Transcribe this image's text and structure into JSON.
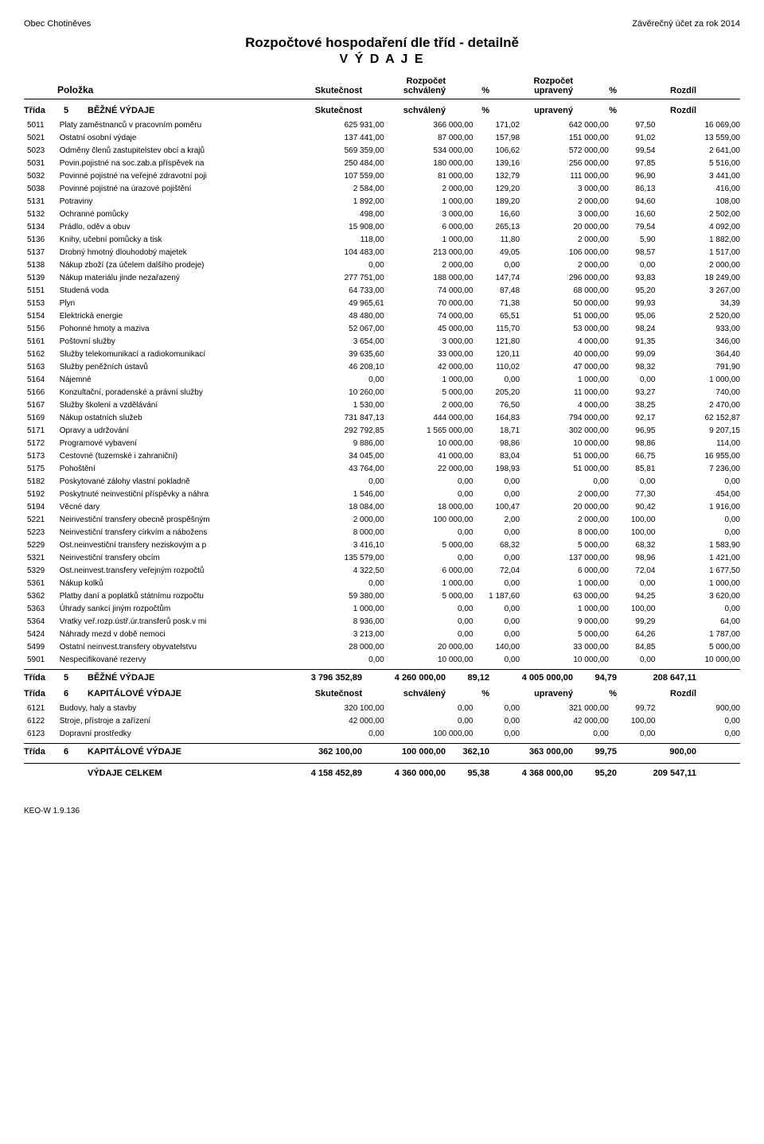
{
  "header": {
    "org_left": "Obec Chotiněves",
    "org_right": "Závěrečný účet za rok 2014",
    "title": "Rozpočtové hospodaření dle tříd - detailně",
    "subtitle": "V Ý D A J E"
  },
  "columns": {
    "polozka": "Položka",
    "skutecnost": "Skutečnost",
    "rozpocet_schvaleny_1": "Rozpočet",
    "rozpocet_schvaleny_2": "schválený",
    "pct": "%",
    "rozpocet_upraveny_1": "Rozpočet",
    "rozpocet_upraveny_2": "upravený",
    "rozdil": "Rozdíl"
  },
  "class_header_labels": {
    "trida": "Třída",
    "skutecnost": "Skutečnost",
    "schvaleny": "schválený",
    "pct": "%",
    "upraveny": "upravený",
    "rozdil": "Rozdíl"
  },
  "sections": [
    {
      "num": "5",
      "name": "BĚŽNÉ VÝDAJE",
      "rows": [
        [
          "5011",
          "Platy zaměstnanců v pracovním poměru",
          "625 931,00",
          "366 000,00",
          "171,02",
          "642 000,00",
          "97,50",
          "16 069,00"
        ],
        [
          "5021",
          "Ostatní osobní výdaje",
          "137 441,00",
          "87 000,00",
          "157,98",
          "151 000,00",
          "91,02",
          "13 559,00"
        ],
        [
          "5023",
          "Odměny členů zastupitelstev obcí a krajů",
          "569 359,00",
          "534 000,00",
          "106,62",
          "572 000,00",
          "99,54",
          "2 641,00"
        ],
        [
          "5031",
          "Povin.pojistné na soc.zab.a příspěvek na",
          "250 484,00",
          "180 000,00",
          "139,16",
          "256 000,00",
          "97,85",
          "5 516,00"
        ],
        [
          "5032",
          "Povinné pojistné na veřejné zdravotní poji",
          "107 559,00",
          "81 000,00",
          "132,79",
          "111 000,00",
          "96,90",
          "3 441,00"
        ],
        [
          "5038",
          "Povinné pojistné na úrazové pojištění",
          "2 584,00",
          "2 000,00",
          "129,20",
          "3 000,00",
          "86,13",
          "416,00"
        ],
        [
          "5131",
          "Potraviny",
          "1 892,00",
          "1 000,00",
          "189,20",
          "2 000,00",
          "94,60",
          "108,00"
        ],
        [
          "5132",
          "Ochranné pomůcky",
          "498,00",
          "3 000,00",
          "16,60",
          "3 000,00",
          "16,60",
          "2 502,00"
        ],
        [
          "5134",
          "Prádlo, oděv a obuv",
          "15 908,00",
          "6 000,00",
          "265,13",
          "20 000,00",
          "79,54",
          "4 092,00"
        ],
        [
          "5136",
          "Knihy, učební pomůcky a tisk",
          "118,00",
          "1 000,00",
          "11,80",
          "2 000,00",
          "5,90",
          "1 882,00"
        ],
        [
          "5137",
          "Drobný hmotný dlouhodobý majetek",
          "104 483,00",
          "213 000,00",
          "49,05",
          "106 000,00",
          "98,57",
          "1 517,00"
        ],
        [
          "5138",
          "Nákup zboží (za účelem dalšího prodeje)",
          "0,00",
          "2 000,00",
          "0,00",
          "2 000,00",
          "0,00",
          "2 000,00"
        ],
        [
          "5139",
          "Nákup materiálu jinde nezařazený",
          "277 751,00",
          "188 000,00",
          "147,74",
          "296 000,00",
          "93,83",
          "18 249,00"
        ],
        [
          "5151",
          "Studená voda",
          "64 733,00",
          "74 000,00",
          "87,48",
          "68 000,00",
          "95,20",
          "3 267,00"
        ],
        [
          "5153",
          "Plyn",
          "49 965,61",
          "70 000,00",
          "71,38",
          "50 000,00",
          "99,93",
          "34,39"
        ],
        [
          "5154",
          "Elektrická energie",
          "48 480,00",
          "74 000,00",
          "65,51",
          "51 000,00",
          "95,06",
          "2 520,00"
        ],
        [
          "5156",
          "Pohonné hmoty a maziva",
          "52 067,00",
          "45 000,00",
          "115,70",
          "53 000,00",
          "98,24",
          "933,00"
        ],
        [
          "5161",
          "Poštovní služby",
          "3 654,00",
          "3 000,00",
          "121,80",
          "4 000,00",
          "91,35",
          "346,00"
        ],
        [
          "5162",
          "Služby telekomunikací a radiokomunikací",
          "39 635,60",
          "33 000,00",
          "120,11",
          "40 000,00",
          "99,09",
          "364,40"
        ],
        [
          "5163",
          "Služby peněžních ústavů",
          "46 208,10",
          "42 000,00",
          "110,02",
          "47 000,00",
          "98,32",
          "791,90"
        ],
        [
          "5164",
          "Nájemné",
          "0,00",
          "1 000,00",
          "0,00",
          "1 000,00",
          "0,00",
          "1 000,00"
        ],
        [
          "5166",
          "Konzultační, poradenské a právní služby",
          "10 260,00",
          "5 000,00",
          "205,20",
          "11 000,00",
          "93,27",
          "740,00"
        ],
        [
          "5167",
          "Služby školení a vzdělávání",
          "1 530,00",
          "2 000,00",
          "76,50",
          "4 000,00",
          "38,25",
          "2 470,00"
        ],
        [
          "5169",
          "Nákup ostatních služeb",
          "731 847,13",
          "444 000,00",
          "164,83",
          "794 000,00",
          "92,17",
          "62 152,87"
        ],
        [
          "5171",
          "Opravy a udržování",
          "292 792,85",
          "1 565 000,00",
          "18,71",
          "302 000,00",
          "96,95",
          "9 207,15"
        ],
        [
          "5172",
          "Programové vybavení",
          "9 886,00",
          "10 000,00",
          "98,86",
          "10 000,00",
          "98,86",
          "114,00"
        ],
        [
          "5173",
          "Cestovné (tuzemské i zahraniční)",
          "34 045,00",
          "41 000,00",
          "83,04",
          "51 000,00",
          "66,75",
          "16 955,00"
        ],
        [
          "5175",
          "Pohoštění",
          "43 764,00",
          "22 000,00",
          "198,93",
          "51 000,00",
          "85,81",
          "7 236,00"
        ],
        [
          "5182",
          "Poskytované zálohy vlastní pokladně",
          "0,00",
          "0,00",
          "0,00",
          "0,00",
          "0,00",
          "0,00"
        ],
        [
          "5192",
          "Poskytnuté neinvestiční příspěvky a náhra",
          "1 546,00",
          "0,00",
          "0,00",
          "2 000,00",
          "77,30",
          "454,00"
        ],
        [
          "5194",
          "Věcné dary",
          "18 084,00",
          "18 000,00",
          "100,47",
          "20 000,00",
          "90,42",
          "1 916,00"
        ],
        [
          "5221",
          "Neinvestiční transfery obecně prospěšným",
          "2 000,00",
          "100 000,00",
          "2,00",
          "2 000,00",
          "100,00",
          "0,00"
        ],
        [
          "5223",
          "Neinvestiční transfery církvím a nábožens",
          "8 000,00",
          "0,00",
          "0,00",
          "8 000,00",
          "100,00",
          "0,00"
        ],
        [
          "5229",
          "Ost.neinvestiční transfery neziskovým a p",
          "3 416,10",
          "5 000,00",
          "68,32",
          "5 000,00",
          "68,32",
          "1 583,90"
        ],
        [
          "5321",
          "Neinvestiční transfery obcím",
          "135 579,00",
          "0,00",
          "0,00",
          "137 000,00",
          "98,96",
          "1 421,00"
        ],
        [
          "5329",
          "Ost.neinvest.transfery veřejným rozpočtů",
          "4 322,50",
          "6 000,00",
          "72,04",
          "6 000,00",
          "72,04",
          "1 677,50"
        ],
        [
          "5361",
          "Nákup kolků",
          "0,00",
          "1 000,00",
          "0,00",
          "1 000,00",
          "0,00",
          "1 000,00"
        ],
        [
          "5362",
          "Platby daní a poplatků státnímu rozpočtu",
          "59 380,00",
          "5 000,00",
          "1 187,60",
          "63 000,00",
          "94,25",
          "3 620,00"
        ],
        [
          "5363",
          "Úhrady sankcí jiným rozpočtům",
          "1 000,00",
          "0,00",
          "0,00",
          "1 000,00",
          "100,00",
          "0,00"
        ],
        [
          "5364",
          "Vratky veř.rozp.ústř.úr.transferů posk.v mi",
          "8 936,00",
          "0,00",
          "0,00",
          "9 000,00",
          "99,29",
          "64,00"
        ],
        [
          "5424",
          "Náhrady mezd v době nemoci",
          "3 213,00",
          "0,00",
          "0,00",
          "5 000,00",
          "64,26",
          "1 787,00"
        ],
        [
          "5499",
          "Ostatní neinvest.transfery obyvatelstvu",
          "28 000,00",
          "20 000,00",
          "140,00",
          "33 000,00",
          "84,85",
          "5 000,00"
        ],
        [
          "5901",
          "Nespecifikované rezervy",
          "0,00",
          "10 000,00",
          "0,00",
          "10 000,00",
          "0,00",
          "10 000,00"
        ]
      ],
      "totals": [
        "3 796 352,89",
        "4 260 000,00",
        "89,12",
        "4 005 000,00",
        "94,79",
        "208 647,11"
      ]
    },
    {
      "num": "6",
      "name": "KAPITÁLOVÉ VÝDAJE",
      "rows": [
        [
          "6121",
          "Budovy, haly a stavby",
          "320 100,00",
          "0,00",
          "0,00",
          "321 000,00",
          "99,72",
          "900,00"
        ],
        [
          "6122",
          "Stroje, přístroje a zařízení",
          "42 000,00",
          "0,00",
          "0,00",
          "42 000,00",
          "100,00",
          "0,00"
        ],
        [
          "6123",
          "Dopravní prostředky",
          "0,00",
          "100 000,00",
          "0,00",
          "0,00",
          "0,00",
          "0,00"
        ]
      ],
      "totals": [
        "362 100,00",
        "100 000,00",
        "362,10",
        "363 000,00",
        "99,75",
        "900,00"
      ]
    }
  ],
  "grand_total": {
    "label": "VÝDAJE CELKEM",
    "values": [
      "4 158 452,89",
      "4 360 000,00",
      "95,38",
      "4 368 000,00",
      "95,20",
      "209 547,11"
    ]
  },
  "footer": "KEO-W 1.9.136"
}
